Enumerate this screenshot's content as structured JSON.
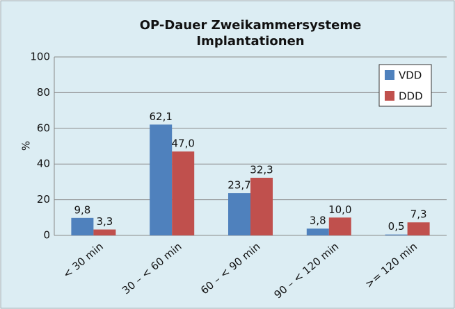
{
  "chart_data": {
    "type": "bar",
    "title": [
      "OP-Dauer Zweikammersysteme",
      "Implantationen"
    ],
    "y_label": "%",
    "categories": [
      "< 30 min",
      "30 – < 60 min",
      "60 – < 90 min",
      "90 – < 120 min",
      ">= 120 min"
    ],
    "series": [
      {
        "name": "VDD",
        "color": "#4f81bd",
        "values": [
          9.8,
          62.1,
          23.7,
          3.8,
          0.5
        ],
        "value_labels": [
          "9,8",
          "62,1",
          "23,7",
          "3,8",
          "0,5"
        ]
      },
      {
        "name": "DDD",
        "color": "#c0504d",
        "values": [
          3.3,
          47.0,
          32.3,
          10.0,
          7.3
        ],
        "value_labels": [
          "3,3",
          "47,0",
          "32,3",
          "10,0",
          "7,3"
        ]
      }
    ],
    "ylim": [
      0,
      100
    ],
    "yticks": [
      0,
      20,
      40,
      60,
      80,
      100
    ],
    "grid": true,
    "legend": "upper right"
  }
}
